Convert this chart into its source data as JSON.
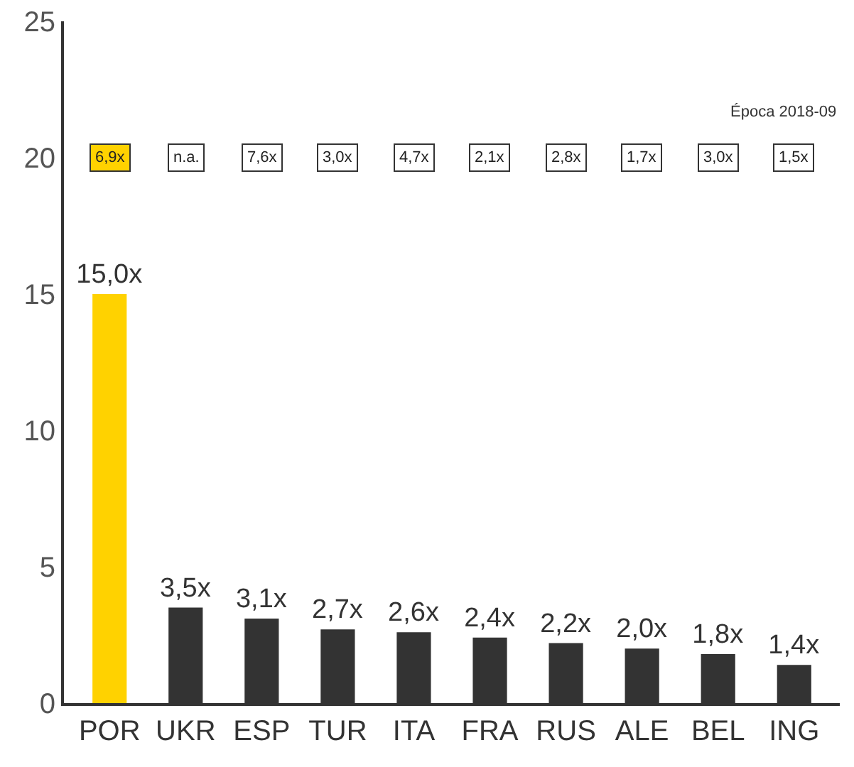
{
  "chart_data": {
    "type": "bar",
    "categories": [
      "POR",
      "UKR",
      "ESP",
      "TUR",
      "ITA",
      "FRA",
      "RUS",
      "ALE",
      "BEL",
      "ING"
    ],
    "values": [
      15.0,
      3.5,
      3.1,
      2.7,
      2.6,
      2.4,
      2.2,
      2.0,
      1.8,
      1.4
    ],
    "colors": [
      "#ffd200",
      "#333333",
      "#333333",
      "#333333",
      "#333333",
      "#333333",
      "#333333",
      "#333333",
      "#333333",
      "#333333"
    ],
    "value_labels": [
      "15,0x",
      "3,5x",
      "3,1x",
      "2,7x",
      "2,6x",
      "2,4x",
      "2,2x",
      "2,0x",
      "1,8x",
      "1,4x"
    ],
    "ylim": [
      0,
      25
    ],
    "yticks": [
      0,
      5,
      10,
      15,
      20,
      25
    ],
    "grid": false,
    "annotations": [
      "Época 2018-09",
      {
        "text": "6,9x",
        "x": "POR",
        "y": 20
      },
      {
        "text": "n.a.",
        "x": "UKR",
        "y": 20
      },
      {
        "text": "7,6x",
        "x": "ESP",
        "y": 20
      },
      {
        "text": "3,0x",
        "x": "TUR",
        "y": 20
      },
      {
        "text": "4,7x",
        "x": "ITA",
        "y": 20
      },
      {
        "text": "2,1x",
        "x": "FRA",
        "y": 20
      },
      {
        "text": "2,8x",
        "x": "RUS",
        "y": 20
      },
      {
        "text": "1,7x",
        "x": "ALE",
        "y": 20
      },
      {
        "text": "3,0x",
        "x": "BEL",
        "y": 20
      },
      {
        "text": "1,5x",
        "x": "ING",
        "y": 20
      }
    ]
  }
}
